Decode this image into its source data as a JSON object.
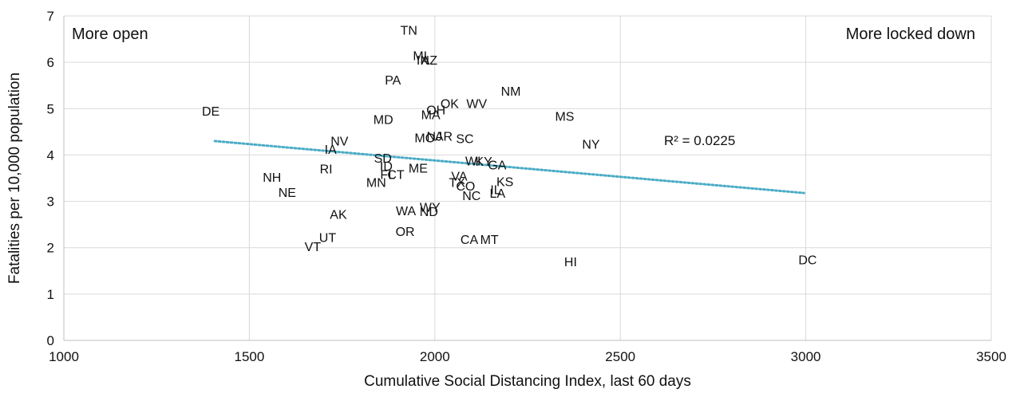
{
  "chart_data": {
    "type": "scatter",
    "xlabel": "Cumulative Social Distancing Index, last 60 days",
    "ylabel": "Fatalities per 10,000 population",
    "xlim": [
      1000,
      3500
    ],
    "ylim": [
      0,
      7
    ],
    "xticks": [
      1000,
      1500,
      2000,
      2500,
      3000,
      3500
    ],
    "yticks": [
      0,
      1,
      2,
      3,
      4,
      5,
      6,
      7
    ],
    "grid": true,
    "annotations": {
      "left": "More open",
      "right": "More locked down"
    },
    "trendline": {
      "label": "R² = 0.0225",
      "start": [
        1407,
        4.3
      ],
      "end": [
        2995,
        3.18
      ],
      "color": "#4bacc6",
      "style": "dotted"
    },
    "points": [
      {
        "label": "TN",
        "x": 1930,
        "y": 6.7
      },
      {
        "label": "MI",
        "x": 1960,
        "y": 6.15
      },
      {
        "label": "IN",
        "x": 1968,
        "y": 6.05
      },
      {
        "label": "AZ",
        "x": 1985,
        "y": 6.05
      },
      {
        "label": "PA",
        "x": 1887,
        "y": 5.62
      },
      {
        "label": "NM",
        "x": 2205,
        "y": 5.38
      },
      {
        "label": "OK",
        "x": 2040,
        "y": 5.12
      },
      {
        "label": "WV",
        "x": 2113,
        "y": 5.12
      },
      {
        "label": "OH",
        "x": 2003,
        "y": 4.98
      },
      {
        "label": "DE",
        "x": 1396,
        "y": 4.95
      },
      {
        "label": "MA",
        "x": 1989,
        "y": 4.88
      },
      {
        "label": "MS",
        "x": 2350,
        "y": 4.84
      },
      {
        "label": "MD",
        "x": 1861,
        "y": 4.77
      },
      {
        "label": "NJ",
        "x": 1999,
        "y": 4.41
      },
      {
        "label": "AR",
        "x": 2024,
        "y": 4.41
      },
      {
        "label": "MO",
        "x": 1973,
        "y": 4.38
      },
      {
        "label": "SC",
        "x": 2081,
        "y": 4.36
      },
      {
        "label": "NV",
        "x": 1743,
        "y": 4.31
      },
      {
        "label": "NY",
        "x": 2421,
        "y": 4.24
      },
      {
        "label": "IA",
        "x": 1719,
        "y": 4.13
      },
      {
        "label": "SD",
        "x": 1860,
        "y": 3.94
      },
      {
        "label": "WI",
        "x": 2103,
        "y": 3.88
      },
      {
        "label": "KY",
        "x": 2132,
        "y": 3.87
      },
      {
        "label": "GA",
        "x": 2168,
        "y": 3.79
      },
      {
        "label": "ID",
        "x": 1869,
        "y": 3.77
      },
      {
        "label": "ME",
        "x": 1955,
        "y": 3.72
      },
      {
        "label": "RI",
        "x": 1707,
        "y": 3.71
      },
      {
        "label": "FL",
        "x": 1873,
        "y": 3.59
      },
      {
        "label": "CT",
        "x": 1895,
        "y": 3.59
      },
      {
        "label": "VA",
        "x": 2066,
        "y": 3.55
      },
      {
        "label": "NH",
        "x": 1561,
        "y": 3.53
      },
      {
        "label": "MN",
        "x": 1842,
        "y": 3.41
      },
      {
        "label": "TX",
        "x": 2060,
        "y": 3.41
      },
      {
        "label": "KS",
        "x": 2189,
        "y": 3.43
      },
      {
        "label": "CO",
        "x": 2083,
        "y": 3.34
      },
      {
        "label": "IL",
        "x": 2164,
        "y": 3.26
      },
      {
        "label": "LA",
        "x": 2169,
        "y": 3.18
      },
      {
        "label": "NE",
        "x": 1602,
        "y": 3.2
      },
      {
        "label": "NC",
        "x": 2099,
        "y": 3.13
      },
      {
        "label": "WY",
        "x": 1987,
        "y": 2.88
      },
      {
        "label": "WA",
        "x": 1922,
        "y": 2.8
      },
      {
        "label": "ND",
        "x": 1984,
        "y": 2.79
      },
      {
        "label": "AK",
        "x": 1740,
        "y": 2.73
      },
      {
        "label": "OR",
        "x": 1920,
        "y": 2.36
      },
      {
        "label": "UT",
        "x": 1711,
        "y": 2.23
      },
      {
        "label": "CA",
        "x": 2093,
        "y": 2.18
      },
      {
        "label": "MT",
        "x": 2147,
        "y": 2.18
      },
      {
        "label": "VT",
        "x": 1671,
        "y": 2.03
      },
      {
        "label": "DC",
        "x": 3005,
        "y": 1.75
      },
      {
        "label": "HI",
        "x": 2366,
        "y": 1.7
      }
    ]
  }
}
